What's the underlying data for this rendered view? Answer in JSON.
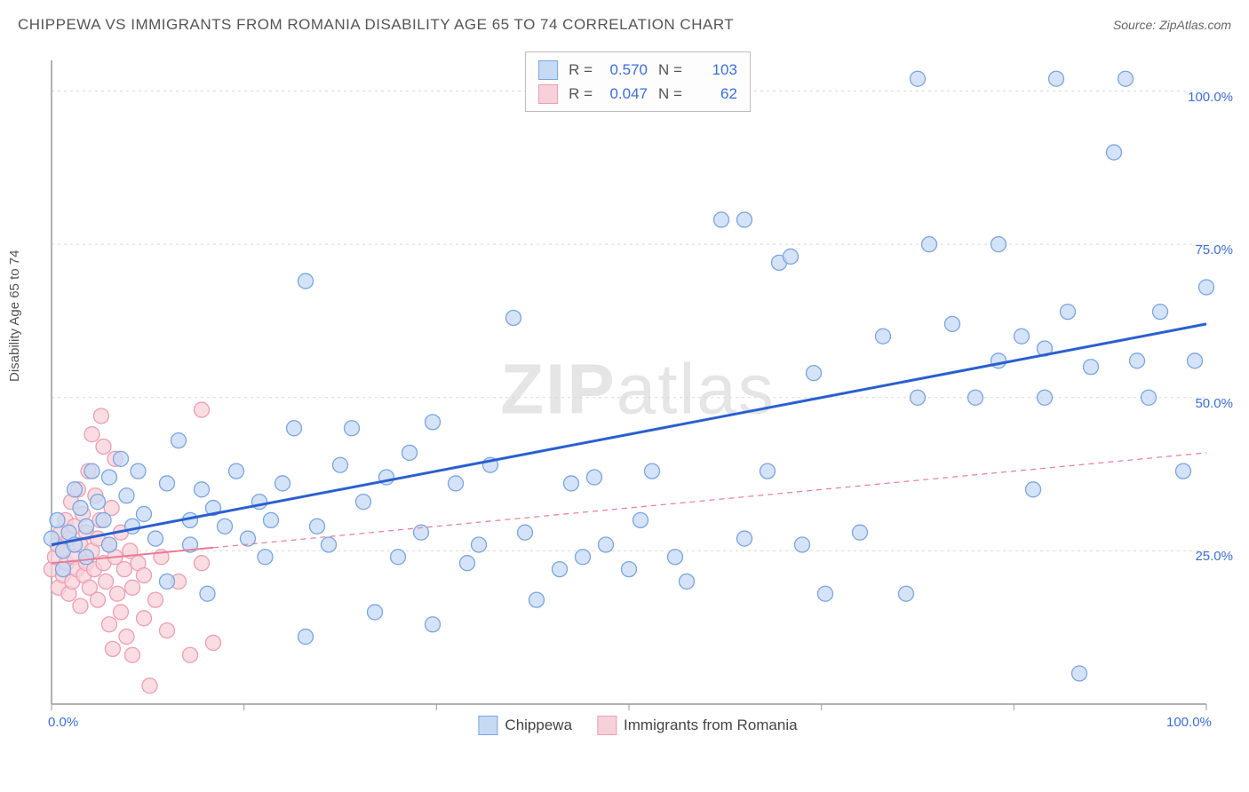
{
  "title": "CHIPPEWA VS IMMIGRANTS FROM ROMANIA DISABILITY AGE 65 TO 74 CORRELATION CHART",
  "source": "Source: ZipAtlas.com",
  "ylabel": "Disability Age 65 to 74",
  "watermark_a": "ZIP",
  "watermark_b": "atlas",
  "chart": {
    "type": "scatter",
    "background_color": "#ffffff",
    "grid_color": "#d9d9d9",
    "axis_line_color": "#999999",
    "tick_label_color": "#3b6fd6",
    "xlim": [
      0,
      100
    ],
    "ylim": [
      0,
      105
    ],
    "y_gridlines": [
      25,
      50,
      75,
      100
    ],
    "y_tick_labels": [
      "25.0%",
      "50.0%",
      "75.0%",
      "100.0%"
    ],
    "x_gridticks": [
      0,
      16.67,
      33.33,
      50,
      66.67,
      83.33,
      100
    ],
    "x_axis_labels": [
      {
        "pos": 0,
        "text": "0.0%"
      },
      {
        "pos": 100,
        "text": "100.0%"
      }
    ],
    "series": [
      {
        "name": "Chippewa",
        "R": "0.570",
        "N": "103",
        "marker_fill": "#c6daf4",
        "marker_stroke": "#7ba5e0",
        "marker_radius": 8.5,
        "marker_opacity": 0.75,
        "trend_color": "#2a5fd0",
        "trend_width": 3,
        "trend_dash": "",
        "trend_from": [
          0,
          26
        ],
        "trend_to": [
          100,
          62
        ],
        "trend_solid_until": 100,
        "points": [
          [
            0,
            27
          ],
          [
            0.5,
            30
          ],
          [
            1,
            25
          ],
          [
            1,
            22
          ],
          [
            1.5,
            28
          ],
          [
            2,
            35
          ],
          [
            2,
            26
          ],
          [
            2.5,
            32
          ],
          [
            3,
            24
          ],
          [
            3,
            29
          ],
          [
            3.5,
            38
          ],
          [
            4,
            33
          ],
          [
            4.5,
            30
          ],
          [
            5,
            37
          ],
          [
            5,
            26
          ],
          [
            6,
            40
          ],
          [
            6.5,
            34
          ],
          [
            7,
            29
          ],
          [
            7.5,
            38
          ],
          [
            8,
            31
          ],
          [
            9,
            27
          ],
          [
            10,
            36
          ],
          [
            10,
            20
          ],
          [
            11,
            43
          ],
          [
            12,
            30
          ],
          [
            12,
            26
          ],
          [
            13,
            35
          ],
          [
            13.5,
            18
          ],
          [
            14,
            32
          ],
          [
            15,
            29
          ],
          [
            16,
            38
          ],
          [
            17,
            27
          ],
          [
            18,
            33
          ],
          [
            18.5,
            24
          ],
          [
            19,
            30
          ],
          [
            20,
            36
          ],
          [
            21,
            45
          ],
          [
            22,
            11
          ],
          [
            22,
            69
          ],
          [
            23,
            29
          ],
          [
            24,
            26
          ],
          [
            25,
            39
          ],
          [
            26,
            45
          ],
          [
            27,
            33
          ],
          [
            28,
            15
          ],
          [
            29,
            37
          ],
          [
            30,
            24
          ],
          [
            31,
            41
          ],
          [
            32,
            28
          ],
          [
            33,
            46
          ],
          [
            33,
            13
          ],
          [
            35,
            36
          ],
          [
            36,
            23
          ],
          [
            37,
            26
          ],
          [
            38,
            39
          ],
          [
            40,
            63
          ],
          [
            41,
            28
          ],
          [
            42,
            17
          ],
          [
            44,
            22
          ],
          [
            45,
            36
          ],
          [
            46,
            24
          ],
          [
            47,
            37
          ],
          [
            48,
            26
          ],
          [
            50,
            22
          ],
          [
            51,
            30
          ],
          [
            52,
            38
          ],
          [
            54,
            24
          ],
          [
            55,
            20
          ],
          [
            58,
            79
          ],
          [
            60,
            79
          ],
          [
            60,
            27
          ],
          [
            62,
            38
          ],
          [
            63,
            72
          ],
          [
            64,
            73
          ],
          [
            65,
            26
          ],
          [
            66,
            54
          ],
          [
            67,
            18
          ],
          [
            70,
            28
          ],
          [
            72,
            60
          ],
          [
            74,
            18
          ],
          [
            75,
            50
          ],
          [
            76,
            75
          ],
          [
            78,
            62
          ],
          [
            80,
            50
          ],
          [
            82,
            75
          ],
          [
            82,
            56
          ],
          [
            84,
            60
          ],
          [
            85,
            35
          ],
          [
            86,
            50
          ],
          [
            86,
            58
          ],
          [
            87,
            102
          ],
          [
            88,
            64
          ],
          [
            89,
            5
          ],
          [
            90,
            55
          ],
          [
            92,
            90
          ],
          [
            93,
            102
          ],
          [
            94,
            56
          ],
          [
            95,
            50
          ],
          [
            96,
            64
          ],
          [
            98,
            38
          ],
          [
            99,
            56
          ],
          [
            100,
            68
          ],
          [
            75,
            102
          ]
        ]
      },
      {
        "name": "Immigrants from Romania",
        "R": "0.047",
        "N": "62",
        "marker_fill": "#f8d0da",
        "marker_stroke": "#ec9eb2",
        "marker_radius": 8.5,
        "marker_opacity": 0.75,
        "trend_color": "#e87b96",
        "trend_width": 2,
        "trend_dash": "6,5",
        "trend_from": [
          0,
          23
        ],
        "trend_to": [
          100,
          41
        ],
        "trend_solid_until": 14,
        "points": [
          [
            0,
            22
          ],
          [
            0.3,
            24
          ],
          [
            0.5,
            26
          ],
          [
            0.6,
            19
          ],
          [
            0.8,
            28
          ],
          [
            1,
            21
          ],
          [
            1,
            25
          ],
          [
            1.2,
            30
          ],
          [
            1.3,
            23
          ],
          [
            1.5,
            27
          ],
          [
            1.5,
            18
          ],
          [
            1.7,
            33
          ],
          [
            1.8,
            20
          ],
          [
            2,
            24
          ],
          [
            2,
            29
          ],
          [
            2.2,
            22
          ],
          [
            2.3,
            35
          ],
          [
            2.5,
            26
          ],
          [
            2.5,
            16
          ],
          [
            2.7,
            31
          ],
          [
            2.8,
            21
          ],
          [
            3,
            28
          ],
          [
            3,
            23
          ],
          [
            3.2,
            38
          ],
          [
            3.3,
            19
          ],
          [
            3.5,
            25
          ],
          [
            3.5,
            44
          ],
          [
            3.7,
            22
          ],
          [
            3.8,
            34
          ],
          [
            4,
            27
          ],
          [
            4,
            17
          ],
          [
            4.2,
            30
          ],
          [
            4.3,
            47
          ],
          [
            4.5,
            23
          ],
          [
            4.5,
            42
          ],
          [
            4.7,
            20
          ],
          [
            5,
            26
          ],
          [
            5,
            13
          ],
          [
            5.2,
            32
          ],
          [
            5.3,
            9
          ],
          [
            5.5,
            24
          ],
          [
            5.5,
            40
          ],
          [
            5.7,
            18
          ],
          [
            6,
            28
          ],
          [
            6,
            15
          ],
          [
            6.3,
            22
          ],
          [
            6.5,
            11
          ],
          [
            6.8,
            25
          ],
          [
            7,
            8
          ],
          [
            7,
            19
          ],
          [
            7.5,
            23
          ],
          [
            8,
            14
          ],
          [
            8,
            21
          ],
          [
            8.5,
            3
          ],
          [
            9,
            17
          ],
          [
            9.5,
            24
          ],
          [
            10,
            12
          ],
          [
            11,
            20
          ],
          [
            12,
            8
          ],
          [
            13,
            23
          ],
          [
            13,
            48
          ],
          [
            14,
            10
          ]
        ]
      }
    ]
  },
  "legend_bottom": [
    {
      "label": "Chippewa",
      "fill": "#c6daf4",
      "stroke": "#7ba5e0"
    },
    {
      "label": "Immigrants from Romania",
      "fill": "#f8d0da",
      "stroke": "#ec9eb2"
    }
  ]
}
